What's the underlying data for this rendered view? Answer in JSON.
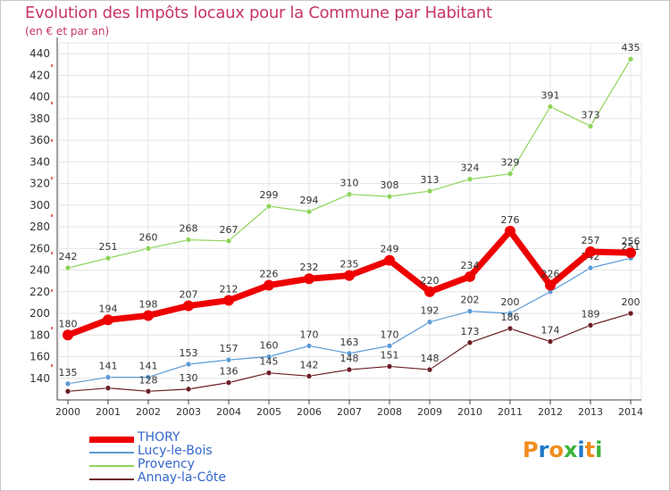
{
  "header": {
    "title": "Evolution des Impôts locaux pour la Commune par Habitant",
    "subtitle": "(en € et par an)"
  },
  "logo": {
    "text": "Proxiti",
    "colors": [
      "#f08c1e",
      "#1e78c8",
      "#f08c1e",
      "#3cb43c",
      "#1e78c8",
      "#f08c1e",
      "#3cb43c"
    ]
  },
  "chart_data": {
    "type": "line",
    "x": [
      "2000",
      "2001",
      "2002",
      "2003",
      "2004",
      "2005",
      "2006",
      "2007",
      "2008",
      "2009",
      "2010",
      "2011",
      "2012",
      "2013",
      "2014"
    ],
    "ylim": [
      120,
      450
    ],
    "yticks": [
      140,
      160,
      180,
      200,
      220,
      240,
      260,
      280,
      300,
      320,
      340,
      360,
      380,
      400,
      420,
      440
    ],
    "grid": true,
    "legend_position": "bottom-left",
    "series": [
      {
        "name": "Provency",
        "color": "#8fd45a",
        "width": 1.2,
        "values": [
          242,
          251,
          260,
          268,
          267,
          299,
          294,
          310,
          308,
          313,
          324,
          329,
          391,
          373,
          435
        ]
      },
      {
        "name": "Lucy-le-Bois",
        "color": "#5b9bd5",
        "width": 1.2,
        "values": [
          135,
          141,
          141,
          153,
          157,
          160,
          170,
          163,
          170,
          192,
          202,
          200,
          220,
          242,
          251
        ]
      },
      {
        "name": "Annay-la-Côte",
        "color": "#6b1e24",
        "width": 1.2,
        "values": [
          128,
          131,
          128,
          130,
          136,
          145,
          142,
          148,
          151,
          148,
          173,
          186,
          174,
          189,
          200
        ]
      },
      {
        "name": "THORY",
        "color": "#ee0000",
        "width": 7,
        "values": [
          180,
          194,
          198,
          207,
          212,
          226,
          232,
          235,
          249,
          220,
          234,
          276,
          226,
          257,
          256
        ]
      }
    ],
    "data_labels": {
      "Provency": [
        "242",
        "251",
        "260",
        "268",
        "267",
        "299",
        "294",
        "310",
        "308",
        "313",
        "324",
        "329",
        "391",
        "373",
        "435"
      ],
      "Lucy-le-Bois": [
        "135",
        "141",
        "141",
        "153",
        "157",
        "160",
        "170",
        "163",
        "170",
        "192",
        "202",
        "200",
        "",
        "242",
        "251"
      ],
      "Annay-la-Côte": [
        "",
        "",
        "128",
        "130",
        "136",
        "145",
        "142",
        "148",
        "151",
        "148",
        "173",
        "186",
        "174",
        "189",
        "200"
      ],
      "THORY": [
        "180",
        "194",
        "198",
        "207",
        "212",
        "226",
        "232",
        "235",
        "249",
        "220",
        "234",
        "276",
        "226",
        "257",
        "256"
      ]
    },
    "legend_order": [
      "THORY",
      "Lucy-le-Bois",
      "Provency",
      "Annay-la-Côte"
    ]
  }
}
